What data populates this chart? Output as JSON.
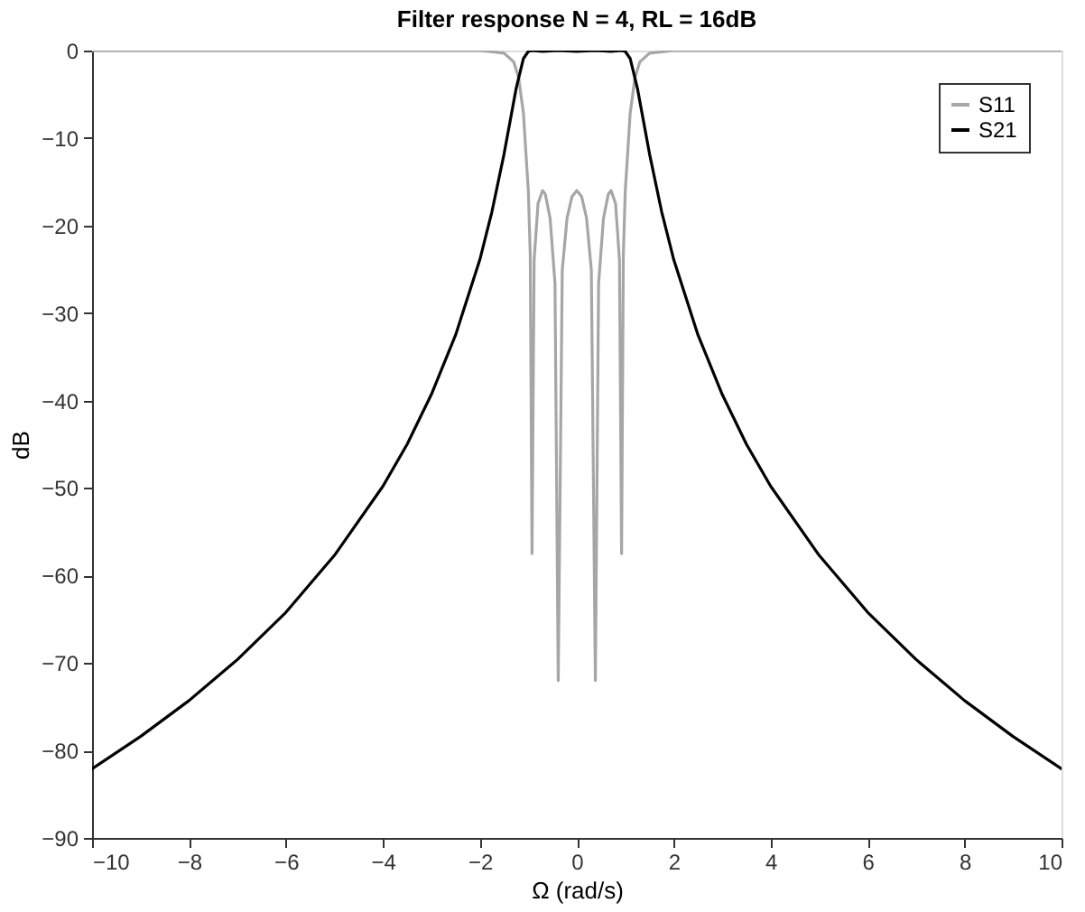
{
  "chart_data": {
    "type": "line",
    "title": "Filter response N = 4, RL = 16dB",
    "xlabel": "Ω (rad/s)",
    "ylabel": "dB",
    "xlim": [
      -10,
      10
    ],
    "xticks": [
      -10,
      -8,
      -6,
      -4,
      -2,
      0,
      2,
      4,
      6,
      8,
      10
    ],
    "ylim": [
      -90,
      0
    ],
    "yticks": [
      -90,
      -80,
      -70,
      -60,
      -50,
      -40,
      -30,
      -20,
      -10,
      0
    ],
    "grid": false,
    "legend": "top right",
    "line_style": "solid",
    "marker": "none",
    "series": [
      {
        "name": "S11",
        "color": "#a6a6a6",
        "x": [
          -10,
          -2,
          -1.5,
          -1.3,
          -1.2,
          -1.1,
          -1.05,
          -1.0,
          -0.96,
          -0.924,
          -0.88,
          -0.8,
          -0.707,
          -0.65,
          -0.55,
          -0.45,
          -0.383,
          -0.3,
          -0.2,
          -0.1,
          0,
          0.1,
          0.2,
          0.3,
          0.383,
          0.45,
          0.55,
          0.65,
          0.707,
          0.8,
          0.88,
          0.924,
          0.96,
          1.0,
          1.05,
          1.1,
          1.2,
          1.3,
          1.5,
          2,
          10
        ],
        "values": [
          0,
          0,
          -0.3,
          -1.3,
          -3.1,
          -7.2,
          -11.7,
          -16,
          -23.4,
          -57.5,
          -23.9,
          -17.5,
          -16,
          -16.4,
          -19.2,
          -26.6,
          -72,
          -25.1,
          -19.1,
          -16.7,
          -16,
          -16.7,
          -19.1,
          -25.1,
          -72,
          -26.6,
          -19.2,
          -16.4,
          -16,
          -17.5,
          -23.9,
          -57.5,
          -23.4,
          -16,
          -11.7,
          -7.2,
          -3.1,
          -1.3,
          -0.3,
          0,
          0
        ]
      },
      {
        "name": "S21",
        "color": "#000000",
        "x": [
          -10,
          -9,
          -8,
          -7,
          -6,
          -5,
          -4,
          -3.5,
          -3,
          -2.5,
          -2,
          -1.75,
          -1.5,
          -1.25,
          -1.1,
          -1,
          -0.924,
          -0.707,
          -0.383,
          0,
          0.383,
          0.707,
          0.924,
          1,
          1.1,
          1.25,
          1.5,
          1.75,
          2,
          2.5,
          3,
          3.5,
          4,
          5,
          6,
          7,
          8,
          9,
          10
        ],
        "values": [
          -82.1,
          -78.4,
          -74.3,
          -69.6,
          -64.2,
          -57.7,
          -49.8,
          -45,
          -39.3,
          -32.5,
          -23.9,
          -18.4,
          -11.8,
          -4.3,
          -0.9,
          -0.1,
          0,
          -0.1,
          0,
          -0.1,
          0,
          -0.1,
          0,
          -0.1,
          -0.9,
          -4.3,
          -11.8,
          -18.4,
          -23.9,
          -32.5,
          -39.3,
          -45,
          -49.8,
          -57.7,
          -64.2,
          -69.6,
          -74.3,
          -78.4,
          -82.1
        ]
      }
    ]
  }
}
